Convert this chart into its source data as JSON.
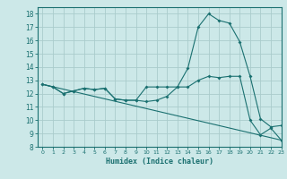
{
  "title": "",
  "xlabel": "Humidex (Indice chaleur)",
  "xlim": [
    -0.5,
    23
  ],
  "ylim": [
    8,
    18.5
  ],
  "xticks": [
    0,
    1,
    2,
    3,
    4,
    5,
    6,
    7,
    8,
    9,
    10,
    11,
    12,
    13,
    14,
    15,
    16,
    17,
    18,
    19,
    20,
    21,
    22,
    23
  ],
  "yticks": [
    8,
    9,
    10,
    11,
    12,
    13,
    14,
    15,
    16,
    17,
    18
  ],
  "bg_color": "#cce8e8",
  "grid_color": "#aacccc",
  "line_color": "#1a7070",
  "series1_x": [
    0,
    1,
    2,
    3,
    4,
    5,
    6,
    7,
    8,
    9,
    10,
    11,
    12,
    13,
    14,
    15,
    16,
    17,
    18,
    19,
    20,
    21,
    22,
    23
  ],
  "series1_y": [
    12.7,
    12.5,
    12.0,
    12.2,
    12.4,
    12.3,
    12.4,
    11.6,
    11.5,
    11.5,
    11.4,
    11.5,
    11.8,
    12.5,
    13.9,
    17.0,
    18.0,
    17.5,
    17.3,
    15.9,
    13.3,
    10.1,
    9.5,
    9.6
  ],
  "series2_x": [
    0,
    1,
    2,
    3,
    4,
    5,
    6,
    7,
    8,
    9,
    10,
    11,
    12,
    13,
    14,
    15,
    16,
    17,
    18,
    19,
    20,
    21,
    22,
    23
  ],
  "series2_y": [
    12.7,
    12.5,
    12.0,
    12.2,
    12.4,
    12.3,
    12.4,
    11.6,
    11.5,
    11.5,
    12.5,
    12.5,
    12.5,
    12.5,
    12.5,
    13.0,
    13.3,
    13.2,
    13.3,
    13.3,
    10.0,
    8.9,
    9.4,
    8.5
  ],
  "series3_x": [
    0,
    23
  ],
  "series3_y": [
    12.7,
    8.5
  ]
}
